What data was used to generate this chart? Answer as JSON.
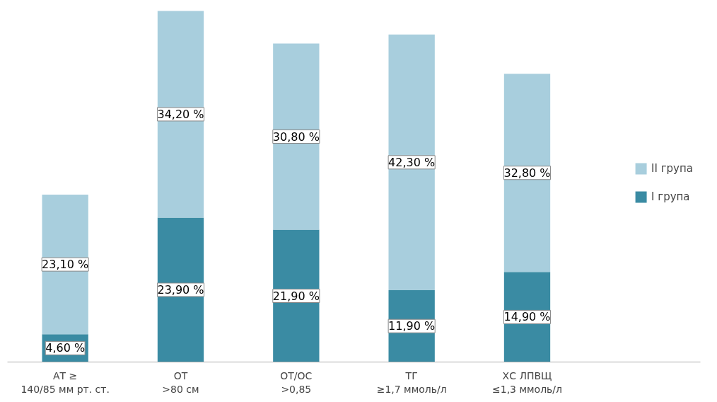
{
  "chart_data": {
    "type": "bar",
    "stacked": true,
    "legend": "right",
    "tick_labels": "x",
    "categories": [
      "АТ ≥\n140/85 мм рт. ст.",
      "ОТ\n>80 см",
      "ОТ/ОС\n>0,85",
      "ТГ\n≥1,7 ммоль/л",
      "ХС ЛПВЩ\n≤1,3 ммоль/л"
    ],
    "series": [
      {
        "name": "I група",
        "color": "#3a8ba3",
        "values": [
          4.6,
          23.9,
          21.9,
          11.9,
          14.9
        ],
        "value_labels": [
          "4,60 %",
          "23,90 %",
          "21,90 %",
          "11,90 %",
          "14,90 %"
        ]
      },
      {
        "name": "II група",
        "color": "#a8cedd",
        "values": [
          23.1,
          34.2,
          30.8,
          42.3,
          32.8
        ],
        "value_labels": [
          "23,10 %",
          "34,20 %",
          "30,80 %",
          "42,30 %",
          "32,80 %"
        ]
      }
    ]
  }
}
